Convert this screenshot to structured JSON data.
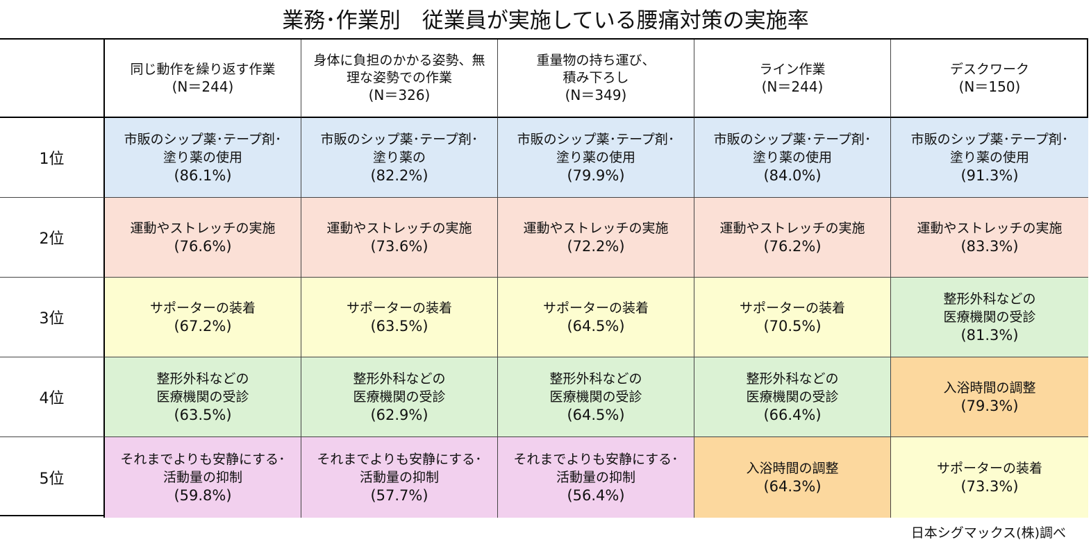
{
  "title": "業務･作業別　従業員が実施している腰痛対策の実施率",
  "source": "日本シグマックス(株)調べ",
  "colors": {
    "シップ": "#dbe9f7",
    "ストレッチ": "#fbe0d6",
    "サポーター": "#fdfdd0",
    "受診": "#dbf2d4",
    "入浴": "#fcd89e",
    "安静": "#f2d0ee"
  },
  "chart_data": {
    "type": "table",
    "columns": [
      {
        "lines": [
          "同じ動作を繰り返す作業"
        ],
        "n": "(N＝244)"
      },
      {
        "lines": [
          "身体に負担のかかる姿勢、無",
          "理な姿勢での作業"
        ],
        "n": "(N＝326)"
      },
      {
        "lines": [
          "重量物の持ち運び、",
          "積み下ろし"
        ],
        "n": "(N＝349)"
      },
      {
        "lines": [
          "ライン作業"
        ],
        "n": "(N＝244)"
      },
      {
        "lines": [
          "デスクワーク"
        ],
        "n": "(N＝150)"
      }
    ],
    "rows": [
      {
        "rank": "1位",
        "cells": [
          {
            "lines": [
              "市販のシップ薬･テープ剤･",
              "塗り薬の使用"
            ],
            "pct": "(86.1%)",
            "color": "シップ"
          },
          {
            "lines": [
              "市販のシップ薬･テープ剤･",
              "塗り薬の"
            ],
            "pct": "(82.2%)",
            "color": "シップ"
          },
          {
            "lines": [
              "市販のシップ薬･テープ剤･",
              "塗り薬の使用"
            ],
            "pct": "(79.9%)",
            "color": "シップ"
          },
          {
            "lines": [
              "市販のシップ薬･テープ剤･",
              "塗り薬の使用"
            ],
            "pct": "(84.0%)",
            "color": "シップ"
          },
          {
            "lines": [
              "市販のシップ薬･テープ剤･",
              "塗り薬の使用"
            ],
            "pct": "(91.3%)",
            "color": "シップ"
          }
        ]
      },
      {
        "rank": "2位",
        "cells": [
          {
            "lines": [
              "運動やストレッチの実施"
            ],
            "pct": "(76.6%)",
            "color": "ストレッチ"
          },
          {
            "lines": [
              "運動やストレッチの実施"
            ],
            "pct": "(73.6%)",
            "color": "ストレッチ"
          },
          {
            "lines": [
              "運動やストレッチの実施"
            ],
            "pct": "(72.2%)",
            "color": "ストレッチ"
          },
          {
            "lines": [
              "運動やストレッチの実施"
            ],
            "pct": "(76.2%)",
            "color": "ストレッチ"
          },
          {
            "lines": [
              "運動やストレッチの実施"
            ],
            "pct": "(83.3%)",
            "color": "ストレッチ"
          }
        ]
      },
      {
        "rank": "3位",
        "cells": [
          {
            "lines": [
              "サポーターの装着"
            ],
            "pct": "(67.2%)",
            "color": "サポーター"
          },
          {
            "lines": [
              "サポーターの装着"
            ],
            "pct": "(63.5%)",
            "color": "サポーター"
          },
          {
            "lines": [
              "サポーターの装着"
            ],
            "pct": "(64.5%)",
            "color": "サポーター"
          },
          {
            "lines": [
              "サポーターの装着"
            ],
            "pct": "(70.5%)",
            "color": "サポーター"
          },
          {
            "lines": [
              "整形外科などの",
              "医療機関の受診"
            ],
            "pct": "(81.3%)",
            "color": "受診"
          }
        ]
      },
      {
        "rank": "4位",
        "cells": [
          {
            "lines": [
              "整形外科などの",
              "医療機関の受診"
            ],
            "pct": "(63.5%)",
            "color": "受診"
          },
          {
            "lines": [
              "整形外科などの",
              "医療機関の受診"
            ],
            "pct": "(62.9%)",
            "color": "受診"
          },
          {
            "lines": [
              "整形外科などの",
              "医療機関の受診"
            ],
            "pct": "(64.5%)",
            "color": "受診"
          },
          {
            "lines": [
              "整形外科などの",
              "医療機関の受診"
            ],
            "pct": "(66.4%)",
            "color": "受診"
          },
          {
            "lines": [
              "入浴時間の調整"
            ],
            "pct": "(79.3%)",
            "color": "入浴"
          }
        ]
      },
      {
        "rank": "5位",
        "cells": [
          {
            "lines": [
              "それまでよりも安静にする･",
              "活動量の抑制"
            ],
            "pct": "(59.8%)",
            "color": "安静"
          },
          {
            "lines": [
              "それまでよりも安静にする･",
              "活動量の抑制"
            ],
            "pct": "(57.7%)",
            "color": "安静"
          },
          {
            "lines": [
              "それまでよりも安静にする･",
              "活動量の抑制"
            ],
            "pct": "(56.4%)",
            "color": "安静"
          },
          {
            "lines": [
              "入浴時間の調整"
            ],
            "pct": "(64.3%)",
            "color": "入浴"
          },
          {
            "lines": [
              "サポーターの装着"
            ],
            "pct": "(73.3%)",
            "color": "サポーター"
          }
        ]
      }
    ]
  }
}
